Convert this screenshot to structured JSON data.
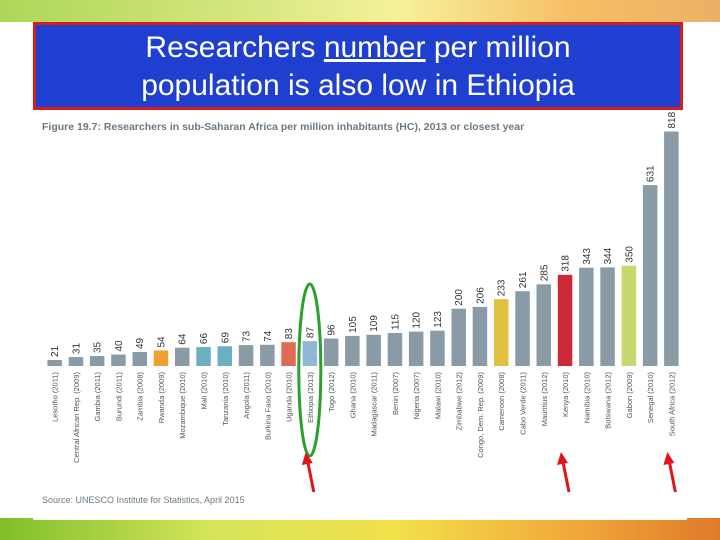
{
  "slide": {
    "title_line1_pre": "Researchers ",
    "title_line1_underlined": "number",
    "title_line1_post": " per million",
    "title_line2": "population is also low in Ethiopia",
    "colors": {
      "title_bg": "#1f3fd1",
      "title_border": "#d81b1b",
      "annotation": "#e0141b",
      "ellipse": "#2ca02c"
    }
  },
  "chart_data": {
    "type": "bar",
    "title": "Figure 19.7: Researchers in sub-Saharan Africa per million inhabitants (HC), 2013 or closest year",
    "source": "Source: UNESCO Institute for Statistics, April 2015",
    "categories": [
      "Lesotho (2011)",
      "Central African Rep. (2009)",
      "Gambia (2011)",
      "Burundi (2011)",
      "Zambia (2008)",
      "Rwanda (2009)",
      "Mozambique (2010)",
      "Mali (2010)",
      "Tanzania (2010)",
      "Angola (2011)",
      "Burkina Faso (2010)",
      "Uganda (2010)",
      "Ethiopia (2013)",
      "Togo (2012)",
      "Ghana (2010)",
      "Madagascar (2011)",
      "Benin (2007)",
      "Nigeria (2007)",
      "Malawi (2010)",
      "Zimbabwe (2012)",
      "Congo, Dem. Rep. (2009)",
      "Cameroon (2008)",
      "Cabo Verde (2011)",
      "Mauritius (2012)",
      "Kenya (2010)",
      "Namibia (2010)",
      "Botswana (2012)",
      "Gabon (2009)",
      "Senegal (2010)",
      "South Africa (2012)"
    ],
    "values": [
      21,
      31,
      35,
      40,
      49,
      54,
      64,
      66,
      69,
      73,
      74,
      83,
      87,
      96,
      105,
      109,
      115,
      120,
      123,
      200,
      206,
      233,
      261,
      285,
      318,
      343,
      344,
      350,
      631,
      818
    ],
    "value_labels": [
      "21",
      "31",
      "35",
      "40",
      "49",
      "54",
      "64",
      "66",
      "69",
      "73",
      "74",
      "83",
      "87",
      "96",
      "105",
      "109",
      "115",
      "120",
      "123",
      "200",
      "206",
      "233",
      "261",
      "285",
      "318",
      "343",
      "344",
      "350",
      "631",
      "818"
    ],
    "colors": [
      "#8a9ba8",
      "#8a9ba8",
      "#8a9ba8",
      "#8a9ba8",
      "#8a9ba8",
      "#f0a030",
      "#8a9ba8",
      "#6ab0c0",
      "#6ab0c0",
      "#8a9ba8",
      "#8a9ba8",
      "#e06a55",
      "#8fb8d8",
      "#8a9ba8",
      "#8a9ba8",
      "#8a9ba8",
      "#8a9ba8",
      "#8a9ba8",
      "#8a9ba8",
      "#8a9ba8",
      "#8a9ba8",
      "#e2c040",
      "#8a9ba8",
      "#8a9ba8",
      "#cc2a36",
      "#8a9ba8",
      "#8a9ba8",
      "#c8d870",
      "#8a9ba8",
      "#8a9ba8"
    ],
    "ylim": [
      0,
      900
    ],
    "grid": false,
    "annotations": {
      "circled": "Ethiopia (2013)",
      "arrows": [
        "Ethiopia (2013)",
        "Kenya (2010)",
        "South Africa (2012)"
      ]
    }
  }
}
